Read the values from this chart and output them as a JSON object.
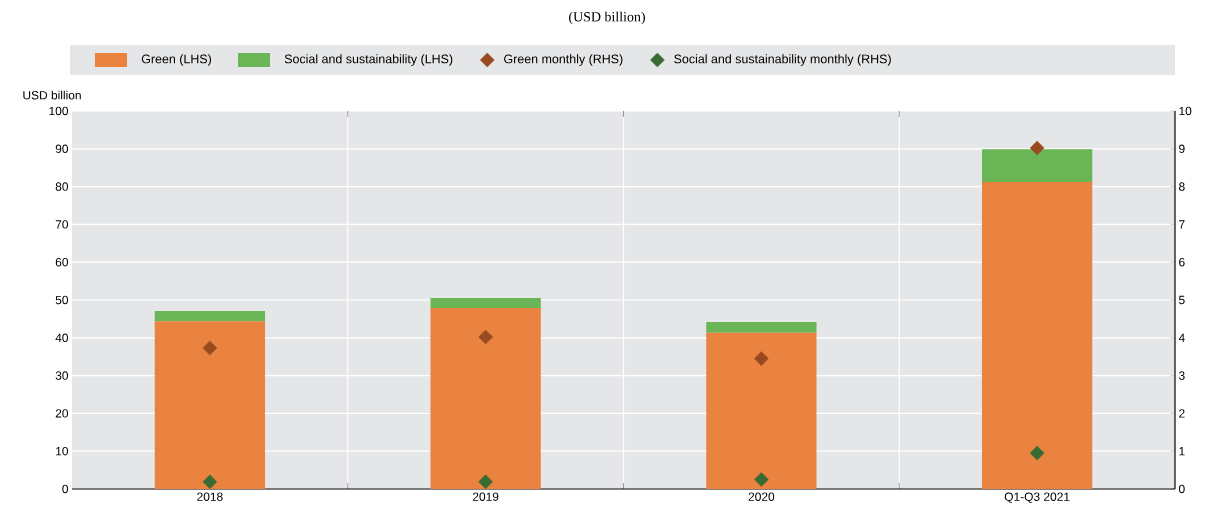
{
  "chart_data": {
    "type": "bar",
    "subtitle": "(USD billion)",
    "ylabel": "USD billion",
    "categories": [
      "2018",
      "2019",
      "2020",
      "Q1-Q3 2021"
    ],
    "stacked": true,
    "series": [
      {
        "name": "Green (LHS)",
        "color": "#e9833f",
        "values": [
          44.4,
          47.9,
          41.3,
          81.2
        ]
      },
      {
        "name": "Social and sustainability (LHS)",
        "color": "#6ab555",
        "values": [
          2.7,
          2.6,
          2.9,
          8.7
        ]
      },
      {
        "name": "Green monthly (RHS)",
        "type": "scatter",
        "axis": "y2",
        "marker": "diamond",
        "color": "#9a4a21",
        "values": [
          3.73,
          4.02,
          3.45,
          9.02
        ]
      },
      {
        "name": "Social and sustainability monthly (RHS)",
        "type": "scatter",
        "axis": "y2",
        "marker": "diamond",
        "color": "#3b6b35",
        "values": [
          0.19,
          0.19,
          0.25,
          0.95
        ]
      }
    ],
    "ylim": [
      0,
      100
    ],
    "yticks": [
      0,
      10,
      20,
      30,
      40,
      50,
      60,
      70,
      80,
      90,
      100
    ],
    "y2lim": [
      0,
      10
    ],
    "y2ticks": [
      0,
      1,
      2,
      3,
      4,
      5,
      6,
      7,
      8,
      9,
      10
    ],
    "grid": true,
    "legend": "top"
  }
}
